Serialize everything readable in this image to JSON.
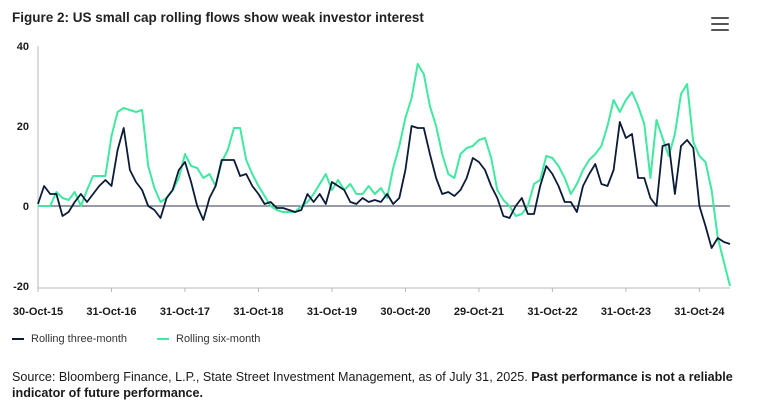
{
  "title": "Figure 2: US small cap rolling flows show weak investor interest",
  "menu_icon": "hamburger-menu-icon",
  "source_text": "Source: Bloomberg Finance, L.P., State Street Investment Management, as of July 31, 2025.",
  "disclaimer_text": "Past performance is not a reliable indicator of future performance.",
  "colors": {
    "three_month": "#0b1b38",
    "six_month": "#40e8a0",
    "zero_line": "#2b3a52",
    "axis": "#b8b8b8",
    "text": "#1a1a1a"
  },
  "chart_data": {
    "type": "line",
    "title": "Figure 2: US small cap rolling flows show weak investor interest",
    "xlabel": "",
    "ylabel": "",
    "ylim": [
      -20,
      40
    ],
    "yticks": [
      40,
      20,
      0,
      -20
    ],
    "grid": false,
    "legend_position": "bottom-left",
    "x_tick_labels": [
      "30-Oct-15",
      "31-Oct-16",
      "31-Oct-17",
      "31-Oct-18",
      "31-Oct-19",
      "30-Oct-20",
      "29-Oct-21",
      "31-Oct-22",
      "31-Oct-23",
      "31-Oct-24"
    ],
    "x_tick_index": [
      0,
      12,
      24,
      36,
      48,
      60,
      72,
      84,
      96,
      108
    ],
    "series": [
      {
        "name": "Rolling three-month",
        "color": "#0b1b38",
        "values": [
          0.5,
          5,
          3,
          3,
          -2.5,
          -1.5,
          1,
          3,
          1,
          3,
          5,
          6.5,
          5,
          14,
          19.5,
          9,
          6,
          4,
          0,
          -1,
          -3,
          2,
          4,
          9,
          11,
          6,
          0,
          -3.5,
          2,
          5,
          11.5,
          11.5,
          11.5,
          7.5,
          8,
          5,
          3,
          0.5,
          1,
          -0.5,
          -0.5,
          -1,
          -1.5,
          -1,
          3,
          1,
          3,
          0.5,
          6,
          5,
          4,
          1,
          0.5,
          2,
          1,
          1.5,
          1,
          3,
          0.5,
          2,
          9,
          20,
          19.5,
          19.5,
          13,
          7,
          3,
          3.5,
          2.5,
          4,
          7,
          12,
          11,
          9,
          5,
          2,
          -2.5,
          -3,
          0,
          2,
          -2,
          -2,
          5,
          10,
          8,
          5,
          1,
          1,
          -1.5,
          5,
          8,
          10.5,
          5.5,
          5,
          9,
          21,
          17,
          18,
          7,
          7,
          2,
          0,
          15,
          15.5,
          3,
          15,
          16.5,
          14.5,
          0,
          -5,
          -10.5,
          -8,
          -9,
          -9.5
        ]
      },
      {
        "name": "Rolling six-month",
        "color": "#40e8a0",
        "values": [
          0,
          0,
          0,
          3.5,
          2,
          1.5,
          3.5,
          0,
          4,
          7.5,
          7.5,
          7.5,
          17.5,
          23.5,
          24.5,
          24,
          23.5,
          24,
          10,
          4.5,
          1,
          2,
          4,
          7,
          13,
          10,
          9.5,
          7,
          8,
          5,
          11,
          14,
          19.5,
          19.5,
          11.5,
          8,
          5,
          2.5,
          0,
          -1,
          -1.5,
          -1.5,
          -1.5,
          0,
          1,
          3,
          5.5,
          8,
          4,
          6.5,
          4,
          5.5,
          3,
          3,
          5,
          3,
          4.5,
          2,
          9.5,
          15,
          22,
          27,
          35.5,
          33,
          25,
          20,
          13,
          8,
          7,
          13,
          14.5,
          15,
          16.5,
          17,
          12,
          4,
          1.5,
          0,
          -2.5,
          -2,
          0,
          5.5,
          6.5,
          12.5,
          12,
          10,
          7,
          3,
          5.5,
          9,
          11.5,
          13,
          15,
          20,
          26.5,
          23.5,
          26.5,
          28.5,
          25,
          20.5,
          7,
          21.5,
          17,
          12.5,
          18,
          28,
          30.5,
          16,
          12.5,
          11,
          4,
          -8,
          -14,
          -20
        ]
      }
    ]
  }
}
